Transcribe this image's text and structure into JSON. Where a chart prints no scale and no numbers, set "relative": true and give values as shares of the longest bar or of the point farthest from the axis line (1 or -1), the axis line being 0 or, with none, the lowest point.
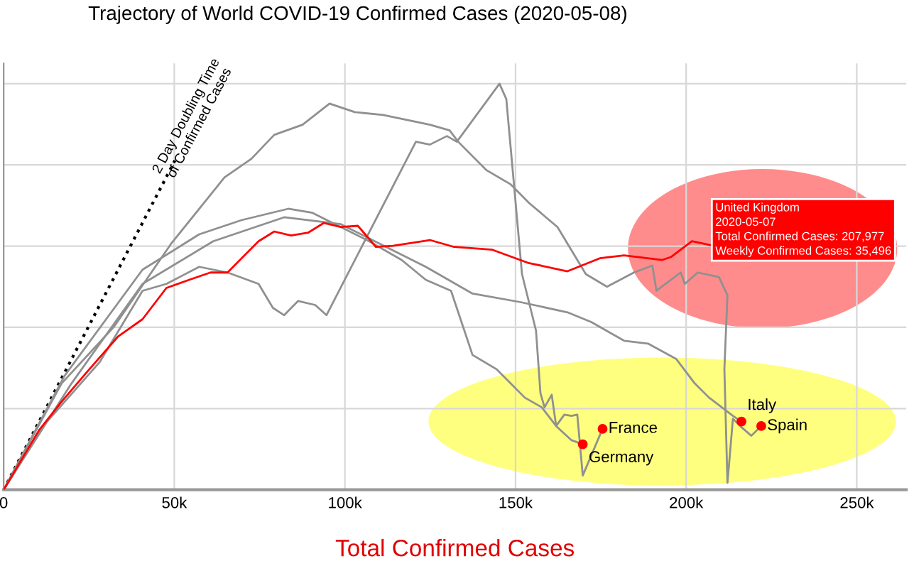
{
  "chart_data": {
    "type": "line",
    "title": "Trajectory of World COVID-19 Confirmed Cases (2020-05-08)",
    "xlabel": "Total Confirmed Cases",
    "relative": true,
    "grid": true,
    "legend": false,
    "xlim": [
      0,
      264500
    ],
    "xticks": [
      0,
      {
        "value": 50000,
        "label": "50k"
      },
      {
        "value": 100000,
        "label": "100k"
      },
      {
        "value": 150000,
        "label": "150k"
      },
      {
        "value": 200000,
        "label": "200k"
      },
      {
        "value": 250000,
        "label": "250k"
      }
    ],
    "annotations": [
      {
        "text": "United Kingdom\n2020-05-07\nTotal Confirmed Cases: 207,977\nWeekly Confirmed Cases: 35,496",
        "x": 207977,
        "y": 0.601
      }
    ],
    "series": [
      {
        "name": "2 Day Doubling Time\nof Confirmed Cases",
        "color": "#000000",
        "line_style": "dotted",
        "x": [
          0,
          50200
        ],
        "values": [
          0,
          0.811
        ]
      },
      {
        "name": "Spain",
        "color": "#909090",
        "x": [
          0,
          17000,
          32400,
          49000,
          64700,
          72600,
          79300,
          87600,
          95500,
          102900,
          111200,
          124900,
          130700,
          133200,
          141500,
          148600,
          154000,
          162300,
          170600,
          176800,
          184700,
          190100,
          191300,
          198400,
          199600,
          203400,
          209600,
          212100,
          211200,
          212100,
          213700,
          215800,
          219100,
          222000
        ],
        "values": [
          0,
          0.262,
          0.402,
          0.605,
          0.769,
          0.815,
          0.874,
          0.899,
          0.951,
          0.93,
          0.923,
          0.899,
          0.885,
          0.857,
          0.787,
          0.752,
          0.706,
          0.647,
          0.531,
          0.5,
          0.535,
          0.552,
          0.49,
          0.535,
          0.507,
          0.535,
          0.524,
          0.479,
          0.297,
          0.017,
          0.175,
          0.157,
          0.133,
          0.157
        ]
      },
      {
        "name": "France",
        "color": "#909090",
        "x": [
          0,
          11600,
          28200,
          40700,
          47700,
          57300,
          65600,
          74700,
          78900,
          82200,
          86300,
          91300,
          94600,
          120800,
          124900,
          129900,
          132800,
          145300,
          147300,
          151900,
          156000,
          157300,
          158500,
          160600,
          161900,
          164300,
          166400,
          168100,
          169700,
          175500
        ],
        "values": [
          0,
          0.157,
          0.315,
          0.49,
          0.507,
          0.549,
          0.535,
          0.507,
          0.448,
          0.43,
          0.465,
          0.455,
          0.43,
          0.857,
          0.85,
          0.871,
          0.857,
          1.0,
          0.962,
          0.531,
          0.392,
          0.238,
          0.203,
          0.234,
          0.157,
          0.185,
          0.182,
          0.185,
          0.035,
          0.15
        ]
      },
      {
        "name": "Germany",
        "color": "#909090",
        "x": [
          0,
          17800,
          40700,
          57300,
          69700,
          83400,
          90500,
          98800,
          107100,
          116600,
          123700,
          131100,
          137400,
          144400,
          152700,
          157700,
          161900,
          166400,
          169700
        ],
        "values": [
          0,
          0.28,
          0.542,
          0.629,
          0.664,
          0.692,
          0.682,
          0.647,
          0.612,
          0.566,
          0.517,
          0.49,
          0.332,
          0.297,
          0.227,
          0.203,
          0.157,
          0.122,
          0.112
        ]
      },
      {
        "name": "Italy",
        "color": "#909090",
        "x": [
          0,
          19900,
          40700,
          61400,
          82200,
          98800,
          107100,
          123700,
          137400,
          151500,
          165200,
          172200,
          181800,
          188800,
          197100,
          202500,
          206700,
          213700,
          216200
        ],
        "values": [
          0,
          0.262,
          0.507,
          0.612,
          0.671,
          0.654,
          0.619,
          0.549,
          0.483,
          0.462,
          0.437,
          0.413,
          0.367,
          0.36,
          0.322,
          0.262,
          0.227,
          0.182,
          0.168
        ]
      },
      {
        "color": "#ff0000",
        "x": [
          0,
          10400,
          17000,
          24100,
          33600,
          40700,
          47700,
          54400,
          60600,
          65600,
          74700,
          79300,
          84200,
          89200,
          93800,
          98800,
          103800,
          109100,
          114100,
          119500,
          124900,
          132000,
          143200,
          153600,
          165200,
          174700,
          181800,
          193000,
          195500,
          201700,
          207977
        ],
        "values": [
          0,
          0.147,
          0.217,
          0.287,
          0.378,
          0.42,
          0.497,
          0.517,
          0.535,
          0.535,
          0.612,
          0.636,
          0.626,
          0.633,
          0.657,
          0.647,
          0.65,
          0.598,
          0.601,
          0.608,
          0.615,
          0.598,
          0.591,
          0.559,
          0.538,
          0.57,
          0.577,
          0.566,
          0.573,
          0.612,
          0.601
        ]
      }
    ]
  }
}
